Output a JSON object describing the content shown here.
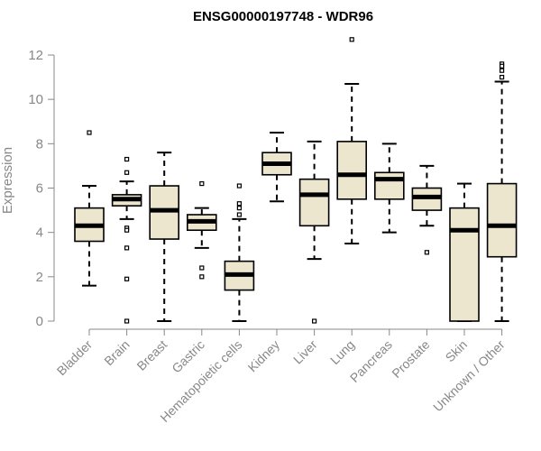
{
  "chart_data": {
    "type": "boxplot",
    "title": "ENSG00000197748 - WDR96",
    "xlabel": "",
    "ylabel": "Expression",
    "ylim": [
      0,
      12
    ],
    "yticks": [
      0,
      2,
      4,
      6,
      8,
      10,
      12
    ],
    "grid": false,
    "colors": {
      "box_fill": "#ede6cf",
      "stroke": "#000000",
      "axis": "#888888"
    },
    "categories": [
      "Bladder",
      "Brain",
      "Breast",
      "Gastric",
      "Hematopoietic cells",
      "Kidney",
      "Liver",
      "Lung",
      "Pancreas",
      "Prostate",
      "Skin",
      "Unknown / Other"
    ],
    "boxes": [
      {
        "category": "Bladder",
        "whisker_low": 1.6,
        "q1": 3.6,
        "median": 4.3,
        "q3": 5.1,
        "whisker_high": 6.1,
        "outliers": [
          8.5
        ]
      },
      {
        "category": "Brain",
        "whisker_low": 4.6,
        "q1": 5.2,
        "median": 5.5,
        "q3": 5.7,
        "whisker_high": 6.3,
        "outliers": [
          7.3,
          6.7,
          4.2,
          4.1,
          3.3,
          1.9,
          0.0
        ]
      },
      {
        "category": "Breast",
        "whisker_low": 0.0,
        "q1": 3.7,
        "median": 5.0,
        "q3": 6.1,
        "whisker_high": 7.6,
        "outliers": []
      },
      {
        "category": "Gastric",
        "whisker_low": 3.3,
        "q1": 4.1,
        "median": 4.5,
        "q3": 4.8,
        "whisker_high": 5.1,
        "outliers": [
          6.2,
          2.4,
          2.0
        ]
      },
      {
        "category": "Hematopoietic cells",
        "whisker_low": 0.0,
        "q1": 1.4,
        "median": 2.1,
        "q3": 2.7,
        "whisker_high": 4.6,
        "outliers": [
          6.1,
          5.3,
          5.1,
          4.8
        ]
      },
      {
        "category": "Kidney",
        "whisker_low": 5.4,
        "q1": 6.6,
        "median": 7.1,
        "q3": 7.6,
        "whisker_high": 8.5,
        "outliers": []
      },
      {
        "category": "Liver",
        "whisker_low": 2.8,
        "q1": 4.3,
        "median": 5.7,
        "q3": 6.4,
        "whisker_high": 8.1,
        "outliers": [
          0.0
        ]
      },
      {
        "category": "Lung",
        "whisker_low": 3.5,
        "q1": 5.5,
        "median": 6.6,
        "q3": 8.1,
        "whisker_high": 10.7,
        "outliers": [
          12.7
        ]
      },
      {
        "category": "Pancreas",
        "whisker_low": 4.0,
        "q1": 5.5,
        "median": 6.4,
        "q3": 6.7,
        "whisker_high": 8.0,
        "outliers": []
      },
      {
        "category": "Prostate",
        "whisker_low": 4.3,
        "q1": 5.0,
        "median": 5.6,
        "q3": 6.0,
        "whisker_high": 7.0,
        "outliers": [
          3.1
        ]
      },
      {
        "category": "Skin",
        "whisker_low": 0.0,
        "q1": 0.0,
        "median": 4.1,
        "q3": 5.1,
        "whisker_high": 6.2,
        "outliers": []
      },
      {
        "category": "Unknown / Other",
        "whisker_low": 0.0,
        "q1": 2.9,
        "median": 4.3,
        "q3": 6.2,
        "whisker_high": 10.8,
        "outliers": [
          11.6,
          11.5,
          11.3,
          11.0
        ]
      }
    ]
  }
}
